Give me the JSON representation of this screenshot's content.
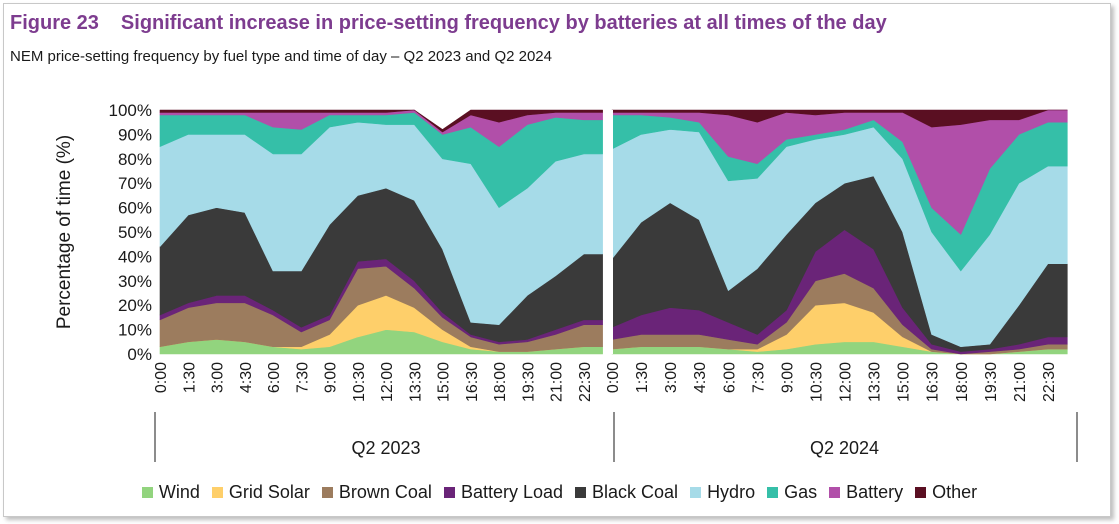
{
  "figure": {
    "number": "Figure 23",
    "title": "Significant increase in price-setting frequency by batteries at all times of the day",
    "subtitle": "NEM price-setting frequency by fuel type and time of day – Q2 2023 and Q2 2024"
  },
  "chart_data": {
    "type": "area",
    "stacked": true,
    "ylabel": "Percentage of time (%)",
    "ylim": [
      0,
      100
    ],
    "yticks": [
      "0%",
      "10%",
      "20%",
      "30%",
      "40%",
      "50%",
      "60%",
      "70%",
      "80%",
      "90%",
      "100%"
    ],
    "x_tick_labels": [
      "0:00",
      "1:30",
      "3:00",
      "4:30",
      "6:00",
      "7:30",
      "9:00",
      "10:30",
      "12:00",
      "13:30",
      "15:00",
      "16:30",
      "18:00",
      "19:30",
      "21:00",
      "22:30"
    ],
    "groups": [
      "Q2 2023",
      "Q2 2024"
    ],
    "x_hours": [
      0,
      1.5,
      3,
      4.5,
      6,
      7.5,
      9,
      10.5,
      12,
      13.5,
      15,
      16.5,
      18,
      19.5,
      21,
      22.5,
      23.5
    ],
    "series": [
      {
        "name": "Wind",
        "color": "#92d47e",
        "values": {
          "Q2 2023": [
            3,
            5,
            6,
            5,
            3,
            2,
            3,
            7,
            10,
            9,
            5,
            2,
            1,
            1,
            2,
            3,
            3
          ],
          "Q2 2024": [
            2,
            3,
            3,
            3,
            2,
            1,
            2,
            4,
            5,
            5,
            3,
            1,
            0,
            0,
            1,
            2,
            2
          ]
        }
      },
      {
        "name": "Grid Solar",
        "color": "#fecf6a",
        "values": {
          "Q2 2023": [
            0,
            0,
            0,
            0,
            0,
            1,
            5,
            13,
            14,
            10,
            5,
            1,
            0,
            0,
            0,
            0,
            0
          ],
          "Q2 2024": [
            0,
            0,
            0,
            0,
            0,
            1,
            6,
            16,
            16,
            12,
            4,
            0,
            0,
            0,
            0,
            0,
            0
          ]
        }
      },
      {
        "name": "Brown Coal",
        "color": "#9c7c5e",
        "values": {
          "Q2 2023": [
            11,
            14,
            15,
            16,
            13,
            6,
            6,
            15,
            12,
            8,
            5,
            4,
            3,
            4,
            6,
            9,
            9
          ],
          "Q2 2024": [
            4,
            5,
            5,
            5,
            4,
            2,
            5,
            10,
            12,
            10,
            5,
            1,
            0,
            1,
            1,
            2,
            2
          ]
        }
      },
      {
        "name": "Battery Load",
        "color": "#6a2478",
        "values": {
          "Q2 2023": [
            2,
            2,
            3,
            3,
            2,
            2,
            2,
            3,
            3,
            3,
            2,
            1,
            1,
            1,
            2,
            2,
            2
          ],
          "Q2 2024": [
            5,
            8,
            11,
            10,
            7,
            4,
            5,
            12,
            18,
            16,
            7,
            2,
            1,
            1,
            2,
            3,
            3
          ]
        }
      },
      {
        "name": "Black Coal",
        "color": "#3a3a3a",
        "values": {
          "Q2 2023": [
            28,
            36,
            36,
            34,
            16,
            23,
            37,
            27,
            29,
            33,
            26,
            5,
            7,
            18,
            22,
            27,
            27
          ],
          "Q2 2024": [
            28,
            38,
            43,
            37,
            13,
            27,
            31,
            20,
            19,
            30,
            31,
            4,
            2,
            2,
            16,
            30,
            30
          ]
        }
      },
      {
        "name": "Hydro",
        "color": "#a6dbe8",
        "values": {
          "Q2 2023": [
            41,
            33,
            30,
            32,
            48,
            48,
            40,
            30,
            26,
            31,
            37,
            65,
            48,
            44,
            47,
            41,
            41
          ],
          "Q2 2024": [
            45,
            36,
            30,
            36,
            45,
            37,
            36,
            26,
            20,
            20,
            30,
            42,
            31,
            45,
            50,
            40,
            40
          ]
        }
      },
      {
        "name": "Gas",
        "color": "#35bfa8",
        "values": {
          "Q2 2023": [
            13,
            8,
            8,
            8,
            11,
            10,
            5,
            3,
            4,
            5,
            10,
            15,
            25,
            26,
            18,
            14,
            14
          ],
          "Q2 2024": [
            14,
            8,
            5,
            4,
            10,
            6,
            3,
            2,
            2,
            3,
            7,
            10,
            15,
            27,
            20,
            18,
            18
          ]
        }
      },
      {
        "name": "Battery",
        "color": "#b14fa9",
        "values": {
          "Q2 2023": [
            1,
            1,
            1,
            1,
            6,
            7,
            1,
            1,
            1,
            1,
            1,
            5,
            10,
            4,
            2,
            3,
            3
          ],
          "Q2 2024": [
            1,
            1,
            2,
            4,
            17,
            17,
            11,
            8,
            7,
            3,
            12,
            33,
            45,
            20,
            6,
            5,
            5
          ]
        }
      },
      {
        "name": "Other",
        "color": "#5a0f22",
        "values": {
          "Q2 2023": [
            1,
            1,
            1,
            1,
            1,
            1,
            1,
            1,
            1,
            0,
            1,
            2,
            5,
            2,
            1,
            1,
            1
          ],
          "Q2 2024": [
            1,
            1,
            1,
            1,
            2,
            5,
            1,
            2,
            1,
            1,
            1,
            7,
            6,
            4,
            4,
            0,
            0
          ]
        }
      }
    ]
  }
}
